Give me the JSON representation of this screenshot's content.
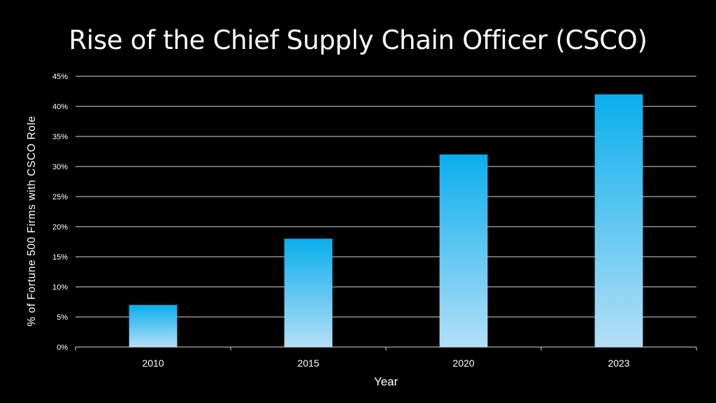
{
  "chart_data": {
    "type": "bar",
    "title": "Rise of the Chief Supply Chain Officer (CSCO)",
    "xlabel": "Year",
    "ylabel": "% of Fortune 500 Firms with CSCO Role",
    "categories": [
      "2010",
      "2015",
      "2020",
      "2023"
    ],
    "values": [
      7,
      18,
      32,
      42
    ],
    "ylim": [
      0,
      45
    ],
    "yticks": [
      "0%",
      "5%",
      "10%",
      "15%",
      "20%",
      "25%",
      "30%",
      "35%",
      "40%",
      "45%"
    ],
    "grid": true,
    "legend": "none",
    "colors": {
      "background": "#000000",
      "bar_top": "#0aaeed",
      "bar_bottom": "#b4dff6",
      "gridline": "#d9d9d9",
      "text": "#ffffff"
    }
  }
}
